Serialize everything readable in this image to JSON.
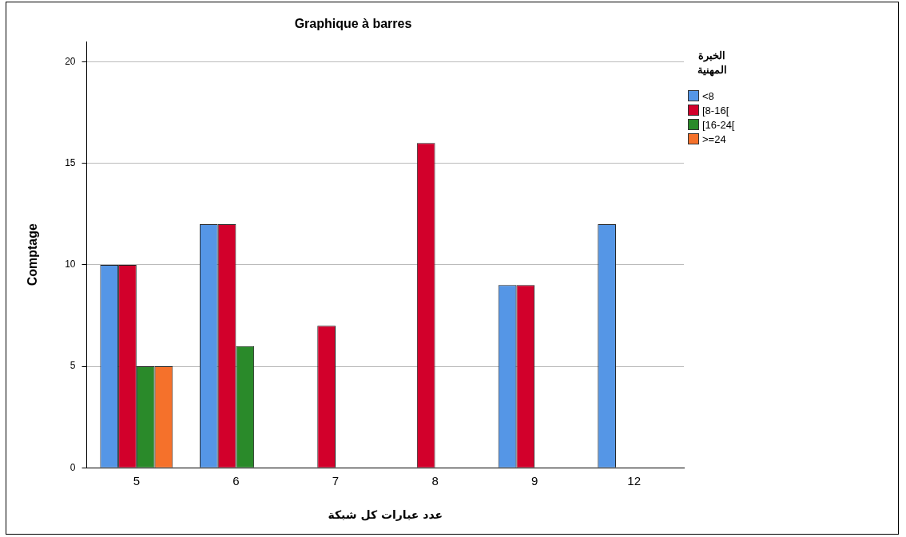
{
  "chart_data": {
    "type": "bar",
    "title": "Graphique à barres",
    "xlabel": "عدد عبارات كل شبكة",
    "ylabel": "Comptage",
    "legend_title": "الخبرة المهنية",
    "categories": [
      "5",
      "6",
      "7",
      "8",
      "9",
      "12"
    ],
    "series": [
      {
        "name": "<8",
        "color": "#5596e6",
        "values": [
          10,
          12,
          null,
          null,
          9,
          12
        ]
      },
      {
        "name": "[8-16[",
        "color": "#d2002b",
        "values": [
          10,
          12,
          7,
          16,
          9,
          null
        ]
      },
      {
        "name": "[16-24[",
        "color": "#2a8a2a",
        "values": [
          5,
          6,
          null,
          null,
          null,
          null
        ]
      },
      {
        "name": ">=24",
        "color": "#f5712b",
        "values": [
          5,
          null,
          null,
          null,
          null,
          null
        ]
      }
    ],
    "ylim": [
      0,
      21
    ],
    "yticks": [
      0,
      5,
      10,
      15,
      20
    ],
    "grid": "y",
    "legend": "top right"
  }
}
